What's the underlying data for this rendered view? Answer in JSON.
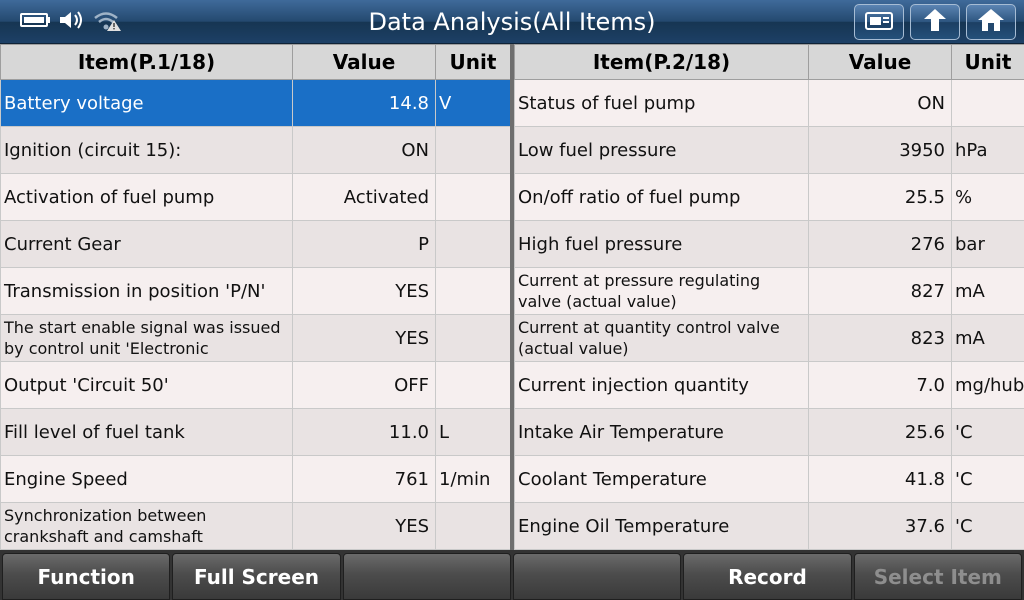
{
  "titlebar": {
    "title": "Data Analysis(All Items)",
    "status_icons": [
      "battery-icon",
      "speaker-icon",
      "wifi-warning-icon"
    ],
    "buttons": [
      "print-screen-icon",
      "back-icon",
      "home-icon"
    ]
  },
  "left_table": {
    "headers": {
      "item": "Item(P.1/18)",
      "value": "Value",
      "unit": "Unit"
    },
    "rows": [
      {
        "item": "Battery voltage",
        "value": "14.8",
        "unit": "V"
      },
      {
        "item": "Ignition (circuit 15):",
        "value": "ON",
        "unit": ""
      },
      {
        "item": "Activation of fuel pump",
        "value": "Activated",
        "unit": ""
      },
      {
        "item": "Current Gear",
        "value": "P",
        "unit": ""
      },
      {
        "item": "Transmission in position 'P/N'",
        "value": "YES",
        "unit": ""
      },
      {
        "item": "The start enable signal was issued by control unit 'Electronic",
        "value": "YES",
        "unit": ""
      },
      {
        "item": "Output 'Circuit 50'",
        "value": "OFF",
        "unit": ""
      },
      {
        "item": "Fill level of fuel tank",
        "value": "11.0",
        "unit": "L"
      },
      {
        "item": "Engine Speed",
        "value": "761",
        "unit": "1/min"
      },
      {
        "item": "Synchronization between crankshaft and camshaft",
        "value": "YES",
        "unit": ""
      }
    ]
  },
  "right_table": {
    "headers": {
      "item": "Item(P.2/18)",
      "value": "Value",
      "unit": "Unit"
    },
    "rows": [
      {
        "item": "Status of fuel pump",
        "value": "ON",
        "unit": ""
      },
      {
        "item": "Low fuel pressure",
        "value": "3950",
        "unit": "hPa"
      },
      {
        "item": "On/off ratio of fuel pump",
        "value": "25.5",
        "unit": "%"
      },
      {
        "item": "High fuel pressure",
        "value": "276",
        "unit": "bar"
      },
      {
        "item": "Current at pressure regulating valve (actual value)",
        "value": "827",
        "unit": "mA"
      },
      {
        "item": "Current at quantity control valve (actual value)",
        "value": "823",
        "unit": "mA"
      },
      {
        "item": "Current injection quantity",
        "value": "7.0",
        "unit": "mg/hub"
      },
      {
        "item": "Intake Air Temperature",
        "value": "25.6",
        "unit": "'C"
      },
      {
        "item": "Coolant Temperature",
        "value": "41.8",
        "unit": "'C"
      },
      {
        "item": "Engine Oil Temperature",
        "value": "37.6",
        "unit": "'C"
      }
    ]
  },
  "bottombar": {
    "function": "Function",
    "full_screen": "Full Screen",
    "empty1": "",
    "empty2": "",
    "record": "Record",
    "select_item": "Select Item"
  },
  "colors": {
    "selected_row": "#1a6fc6",
    "title_bar": "#24496f"
  }
}
